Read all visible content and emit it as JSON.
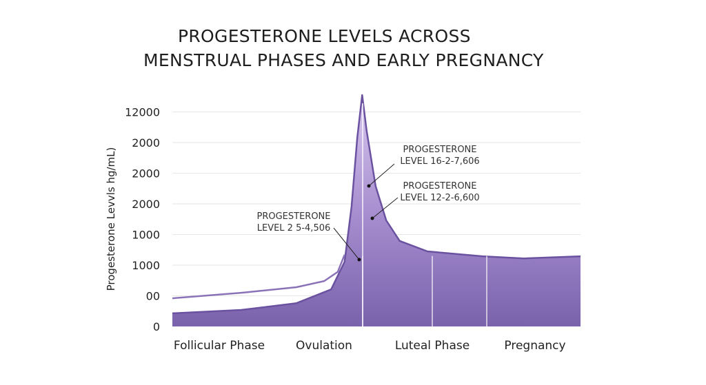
{
  "chart_data": {
    "type": "area",
    "title": [
      "PROGESTERONE LEVELS ACROSS",
      "MENSTRUAL PHASES AND EARLY PREGNANCY"
    ],
    "ylabel": "Progesterone Levvls hg/mL)",
    "xlabel": "",
    "y_tick_labels": [
      "0",
      "00",
      "1000",
      "1000",
      "2000",
      "2000",
      "2000",
      "12000"
    ],
    "categories": [
      "Follicular Phase",
      "Ovulation",
      "Luteal Phase",
      "Pregnancy"
    ],
    "grid": true,
    "colors": {
      "fill_dark": "#7b64ad",
      "fill_light": "#cbb8e6",
      "line": "#8a72b8",
      "grid": "#e6e6e6"
    },
    "series": [
      {
        "kind": "filled-area",
        "x": [
          0,
          16.9,
          30.4,
          38.9,
          42.2,
          43.9,
          45.3,
          46.5,
          47.6,
          49.8,
          52.4,
          55.7,
          62.5,
          76,
          86.1,
          100
        ],
        "y": [
          0.43,
          0.54,
          0.76,
          1.21,
          2.11,
          3.91,
          6.16,
          7.55,
          6.38,
          4.58,
          3.46,
          2.79,
          2.45,
          2.29,
          2.22,
          2.29
        ]
      },
      {
        "kind": "line",
        "x": [
          0,
          16.9,
          30.4,
          37.2,
          40.5,
          42.2
        ],
        "y": [
          0.92,
          1.1,
          1.28,
          1.48,
          1.78,
          2.34
        ]
      }
    ],
    "annotations": [
      {
        "lines": [
          "PROGESTERONE",
          "LEVEL 16-2-7,606"
        ]
      },
      {
        "lines": [
          "PROGESTERONE",
          "LEVEL 12-2-6,600"
        ]
      },
      {
        "lines": [
          "PROGESTERONE",
          "LEVEL 2 5-4,506"
        ]
      }
    ]
  }
}
